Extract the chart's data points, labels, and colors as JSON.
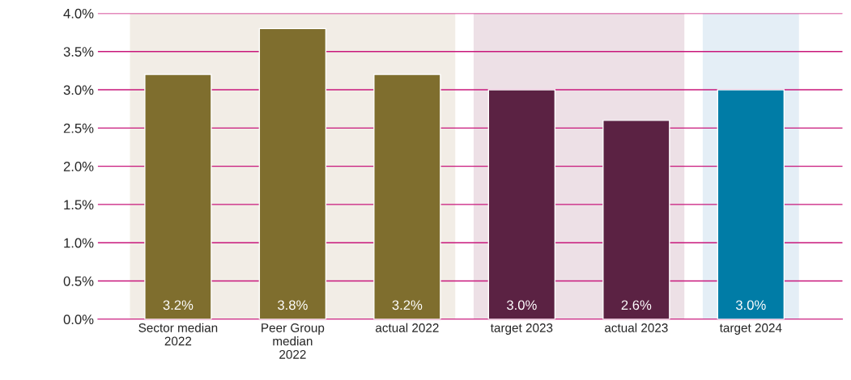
{
  "chart_data": {
    "type": "bar",
    "categories": [
      "Sector median\n2022",
      "Peer Group\nmedian\n2022",
      "actual 2022",
      "target 2023",
      "actual 2023",
      "target 2024"
    ],
    "values": [
      3.2,
      3.8,
      3.2,
      3.0,
      2.6,
      3.0
    ],
    "colors": [
      "#7f6e2e",
      "#7f6e2e",
      "#7f6e2e",
      "#5b2243",
      "#5b2243",
      "#007ca6"
    ],
    "value_labels": [
      "3.2%",
      "3.8%",
      "3.2%",
      "3.0%",
      "2.6%",
      "3.0%"
    ],
    "ylim": [
      0,
      4
    ],
    "yticks": [
      {
        "value": 0,
        "label": "0.0%"
      },
      {
        "value": 0.5,
        "label": "0.5%"
      },
      {
        "value": 1,
        "label": "1.0%"
      },
      {
        "value": 1.5,
        "label": "1.5%"
      },
      {
        "value": 2,
        "label": "2.0%"
      },
      {
        "value": 2.5,
        "label": "2.5%"
      },
      {
        "value": 3,
        "label": "3.0%"
      },
      {
        "value": 3.5,
        "label": "3.5%"
      },
      {
        "value": 4,
        "label": "4.0%"
      }
    ],
    "grid": "y",
    "bands": [
      {
        "axis": "x",
        "from": "Sector median\n2022",
        "to": "actual 2022",
        "color": "#f2ede6"
      },
      {
        "axis": "x",
        "from": "target 2023",
        "to": "actual 2023",
        "color": "#ede0e6"
      },
      {
        "axis": "x",
        "from": "target 2024",
        "to": "target 2024",
        "color": "#e4eef6"
      }
    ]
  }
}
